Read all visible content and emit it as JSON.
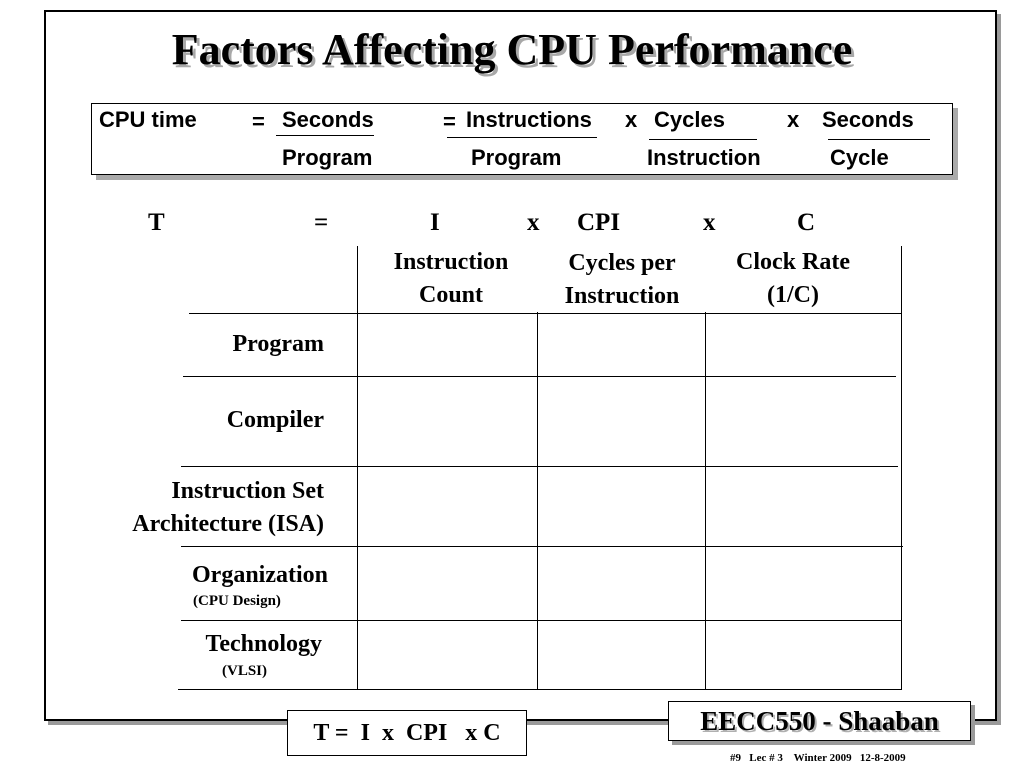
{
  "title": "Factors Affecting CPU Performance",
  "formula": {
    "lhs": "CPU time",
    "eq1": "=",
    "seconds_num": "Seconds",
    "program_den": "Program",
    "eq2": "=",
    "instructions_num": "Instructions",
    "x1": "x",
    "program_den2": "Program",
    "cycles_num": "Cycles",
    "instruction_den": "Instruction",
    "x2": "x",
    "seconds_num2": "Seconds",
    "cycle_den": "Cycle"
  },
  "short_formula": {
    "t": "T",
    "eq": "=",
    "i": "I",
    "x1": "x",
    "cpi": "CPI",
    "x2": "x",
    "c": "C"
  },
  "table": {
    "columns": [
      {
        "line1": "Instruction",
        "line2": "Count"
      },
      {
        "line1": "Cycles per",
        "line2": "Instruction"
      },
      {
        "line1": "Clock Rate",
        "line2": "(1/C)"
      }
    ],
    "rows": [
      {
        "line1": "Program",
        "line2": "",
        "sub": ""
      },
      {
        "line1": "Compiler",
        "line2": "",
        "sub": ""
      },
      {
        "line1": "Instruction Set",
        "line2": "Architecture (ISA)",
        "sub": ""
      },
      {
        "line1": "Organization",
        "line2": "",
        "sub": "(CPU Design)"
      },
      {
        "line1": "Technology",
        "line2": "",
        "sub": "(VLSI)"
      }
    ]
  },
  "bottom_formula": "T =  I  x  CPI   x C",
  "badge": "EECC550 - Shaaban",
  "footer": "#9   Lec # 3    Winter 2009   12-8-2009"
}
